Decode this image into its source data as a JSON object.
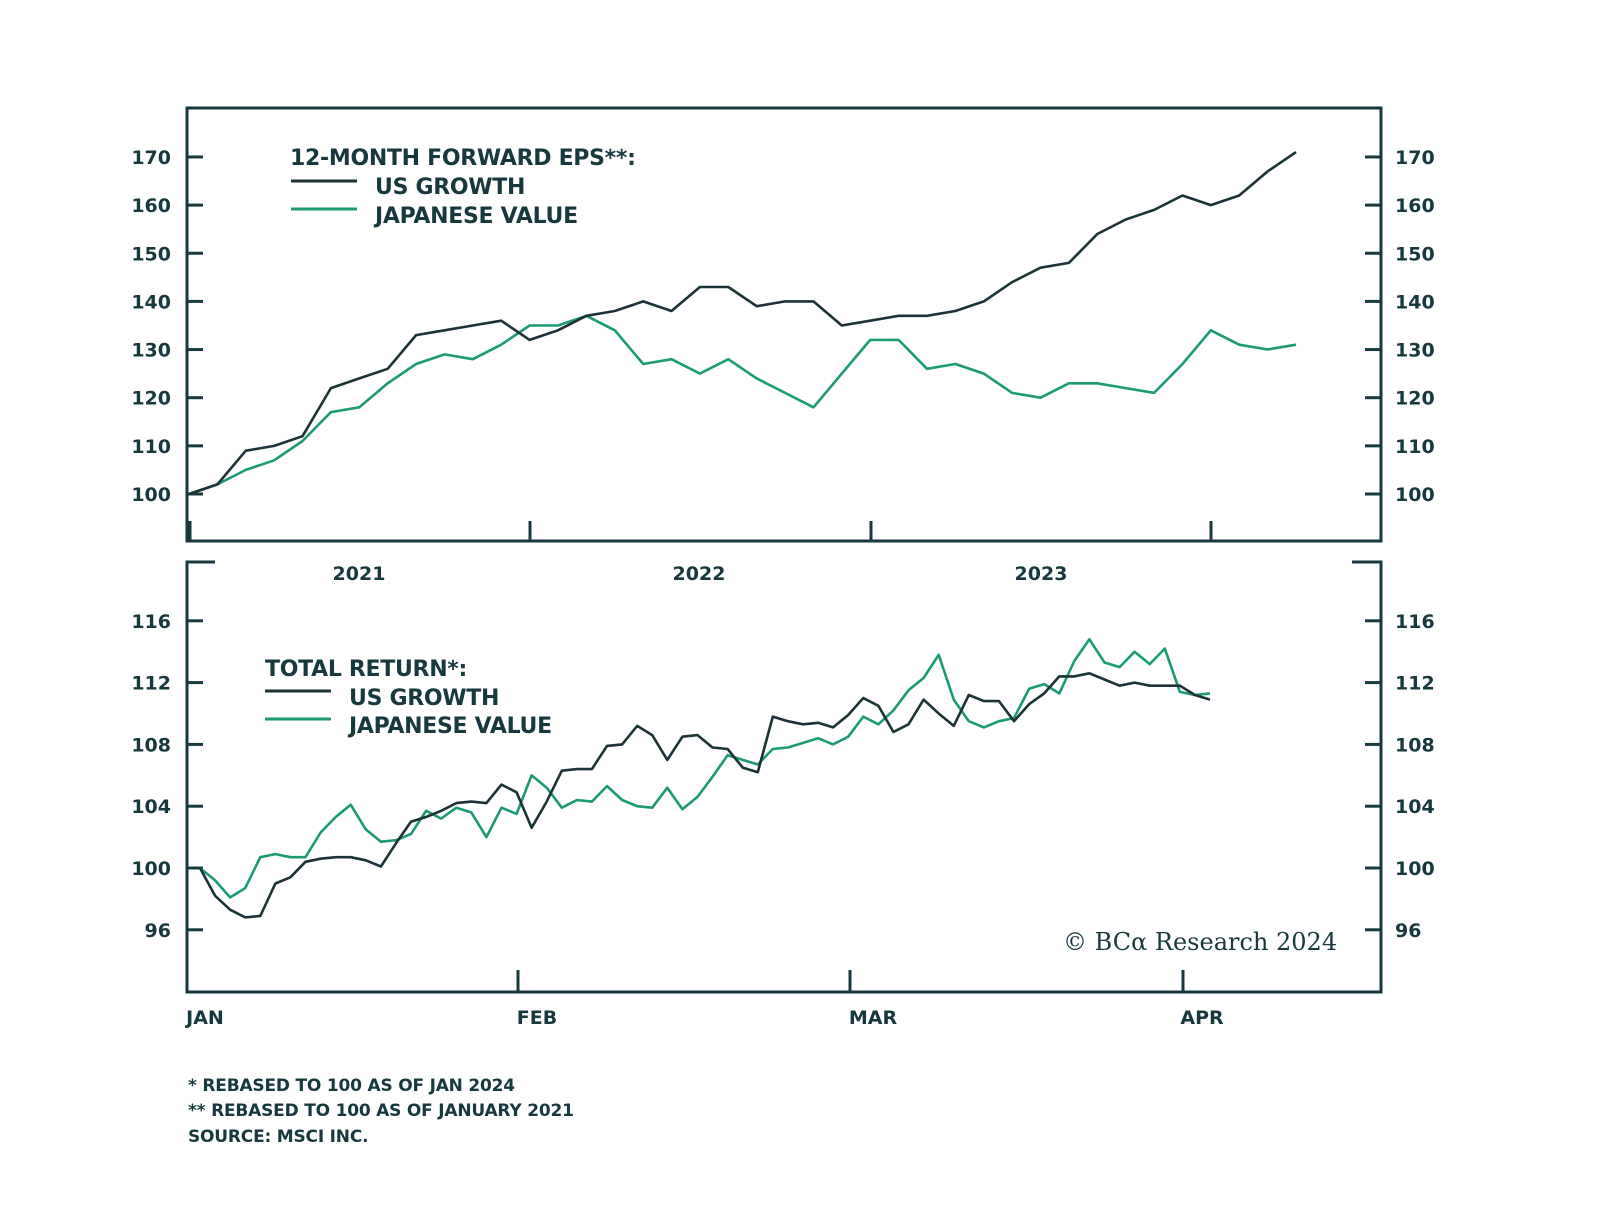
{
  "chart_data": [
    {
      "type": "line",
      "title": "12-MONTH FORWARD EPS**:",
      "xlabel": "",
      "ylabel": "",
      "ylim": [
        90,
        180
      ],
      "yticks": [
        100,
        110,
        120,
        130,
        140,
        150,
        160,
        170
      ],
      "xtick_labels": [
        "2021",
        "2022",
        "2023"
      ],
      "x_start": "2021-01",
      "x_end": "2024-04",
      "legend_position": "top-left",
      "grid": false,
      "series": [
        {
          "name": "US GROWTH",
          "color": "#1c3236",
          "values": [
            100,
            102,
            109,
            110,
            112,
            122,
            124,
            126,
            133,
            134,
            135,
            136,
            132,
            134,
            137,
            138,
            140,
            138,
            143,
            143,
            139,
            140,
            140,
            135,
            136,
            137,
            137,
            138,
            140,
            144,
            147,
            148,
            154,
            157,
            159,
            162,
            160,
            162,
            167,
            171
          ]
        },
        {
          "name": "JAPANESE VALUE",
          "color": "#1b9a73",
          "values": [
            100,
            102,
            105,
            107,
            111,
            117,
            118,
            123,
            127,
            129,
            128,
            131,
            135,
            135,
            137,
            134,
            127,
            128,
            125,
            128,
            124,
            121,
            118,
            125,
            132,
            132,
            126,
            127,
            125,
            121,
            120,
            123,
            123,
            122,
            121,
            127,
            134,
            131,
            130,
            131
          ]
        }
      ]
    },
    {
      "type": "line",
      "title": "TOTAL RETURN*:",
      "xlabel": "",
      "ylabel": "",
      "ylim": [
        94,
        118
      ],
      "yticks": [
        96,
        100,
        104,
        108,
        112,
        116
      ],
      "xtick_labels": [
        "JAN",
        "FEB",
        "MAR",
        "APR"
      ],
      "x_start": "2024-01-01",
      "x_end": "2024-04-05",
      "legend_position": "top-left",
      "grid": false,
      "series": [
        {
          "name": "US GROWTH",
          "color": "#1c3236",
          "values": [
            100,
            98.2,
            97.3,
            96.8,
            96.9,
            99.0,
            99.4,
            100.4,
            100.6,
            100.7,
            100.7,
            100.5,
            100.1,
            101.6,
            103.0,
            103.3,
            103.7,
            104.2,
            104.3,
            104.2,
            105.4,
            104.9,
            102.6,
            104.3,
            106.3,
            106.4,
            106.4,
            107.9,
            108.0,
            109.2,
            108.6,
            107.0,
            108.5,
            108.6,
            107.8,
            107.7,
            106.5,
            106.2,
            109.8,
            109.5,
            109.3,
            109.4,
            109.1,
            109.9,
            111.0,
            110.5,
            108.8,
            109.3,
            110.9,
            110.0,
            109.2,
            111.2,
            110.8,
            110.8,
            109.5,
            110.6,
            111.3,
            112.4,
            112.4,
            112.6,
            112.2,
            111.8,
            112.0,
            111.8,
            111.8,
            111.8,
            111.2,
            110.9
          ]
        },
        {
          "name": "JAPANESE VALUE",
          "color": "#1b9a73",
          "values": [
            100,
            99.2,
            98.1,
            98.7,
            100.7,
            100.9,
            100.7,
            100.7,
            102.3,
            103.3,
            104.1,
            102.5,
            101.7,
            101.8,
            102.2,
            103.7,
            103.2,
            103.9,
            103.6,
            102.0,
            103.9,
            103.5,
            106.0,
            105.2,
            103.9,
            104.4,
            104.3,
            105.3,
            104.4,
            104.0,
            103.9,
            105.2,
            103.8,
            104.6,
            105.9,
            107.3,
            107.0,
            106.7,
            107.7,
            107.8,
            108.1,
            108.4,
            108.0,
            108.5,
            109.8,
            109.3,
            110.2,
            111.5,
            112.3,
            113.8,
            110.9,
            109.5,
            109.1,
            109.5,
            109.7,
            111.6,
            111.9,
            111.3,
            113.4,
            114.8,
            113.3,
            113.0,
            114.0,
            113.2,
            114.2,
            111.4,
            111.2,
            111.3
          ]
        }
      ]
    }
  ],
  "top_chart": {
    "legend_title": "12-MONTH FORWARD EPS**:",
    "legend_items": [
      "US GROWTH",
      "JAPANESE VALUE"
    ]
  },
  "bottom_chart": {
    "legend_title": "TOTAL RETURN*:",
    "legend_items": [
      "US GROWTH",
      "JAPANESE VALUE"
    ],
    "copyright": "© BCα Research 2024"
  },
  "footnotes": [
    "* REBASED TO 100 AS OF JAN 2024",
    "** REBASED TO 100 AS OF JANUARY 2021",
    "SOURCE: MSCI INC."
  ]
}
